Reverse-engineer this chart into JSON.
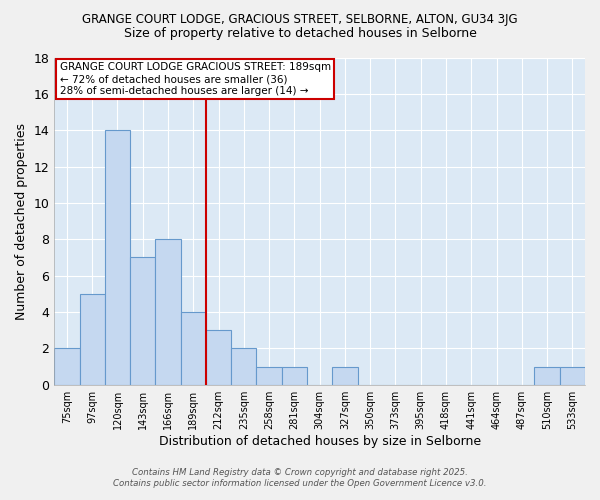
{
  "title": "GRANGE COURT LODGE, GRACIOUS STREET, SELBORNE, ALTON, GU34 3JG",
  "subtitle": "Size of property relative to detached houses in Selborne",
  "xlabel": "Distribution of detached houses by size in Selborne",
  "ylabel": "Number of detached properties",
  "categories": [
    "75sqm",
    "97sqm",
    "120sqm",
    "143sqm",
    "166sqm",
    "189sqm",
    "212sqm",
    "235sqm",
    "258sqm",
    "281sqm",
    "304sqm",
    "327sqm",
    "350sqm",
    "373sqm",
    "395sqm",
    "418sqm",
    "441sqm",
    "464sqm",
    "487sqm",
    "510sqm",
    "533sqm"
  ],
  "values": [
    2,
    5,
    14,
    7,
    8,
    4,
    3,
    2,
    1,
    1,
    0,
    1,
    0,
    0,
    0,
    0,
    0,
    0,
    0,
    1,
    1
  ],
  "bar_color": "#c5d8f0",
  "bar_edge_color": "#6699cc",
  "highlight_line_color": "#cc0000",
  "highlight_line_index": 5,
  "ylim": [
    0,
    18
  ],
  "yticks": [
    0,
    2,
    4,
    6,
    8,
    10,
    12,
    14,
    16,
    18
  ],
  "fig_background_color": "#f0f0f0",
  "plot_background_color": "#dce9f5",
  "grid_color": "#ffffff",
  "annotation_text": "GRANGE COURT LODGE GRACIOUS STREET: 189sqm\n← 72% of detached houses are smaller (36)\n28% of semi-detached houses are larger (14) →",
  "annotation_box_facecolor": "#ffffff",
  "annotation_box_edgecolor": "#cc0000",
  "footer_line1": "Contains HM Land Registry data © Crown copyright and database right 2025.",
  "footer_line2": "Contains public sector information licensed under the Open Government Licence v3.0."
}
